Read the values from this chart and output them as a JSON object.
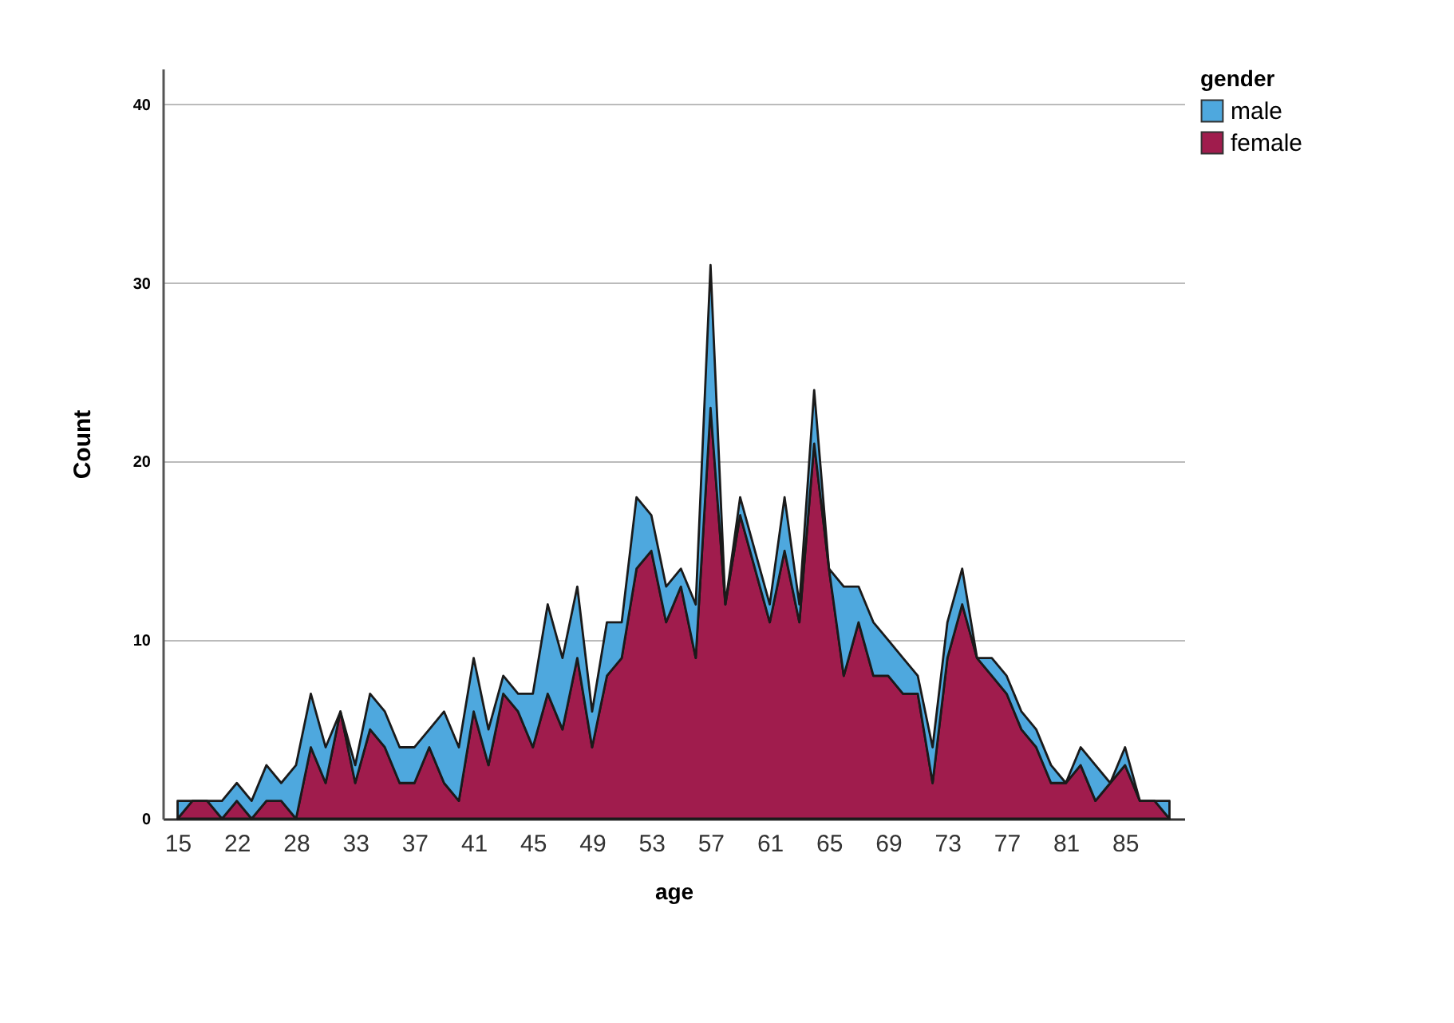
{
  "chart_data": {
    "type": "area",
    "stacked": true,
    "xlabel": "age",
    "ylabel": "Count",
    "legend_title": "gender",
    "legend": "top right",
    "grid": "y",
    "categories": [
      "15",
      null,
      null,
      null,
      "22",
      null,
      null,
      null,
      "28",
      null,
      null,
      null,
      "33",
      null,
      null,
      null,
      "37",
      null,
      null,
      null,
      "41",
      null,
      null,
      null,
      "45",
      null,
      null,
      null,
      "49",
      null,
      null,
      null,
      "53",
      null,
      null,
      null,
      "57",
      null,
      null,
      null,
      "61",
      null,
      null,
      null,
      "65",
      null,
      null,
      null,
      "69",
      null,
      null,
      null,
      "73",
      null,
      null,
      null,
      "77",
      null,
      null,
      null,
      "81",
      null,
      null,
      null,
      "85",
      null,
      null,
      null
    ],
    "ylim": [
      0,
      42
    ],
    "yticks": [
      0,
      10,
      20,
      30,
      40
    ],
    "series": [
      {
        "name": "female",
        "color": "#a01c4d",
        "values": [
          0,
          1,
          1,
          0,
          1,
          0,
          1,
          1,
          0,
          4,
          2,
          6,
          2,
          5,
          4,
          2,
          2,
          4,
          2,
          1,
          6,
          3,
          7,
          6,
          4,
          7,
          5,
          9,
          4,
          8,
          9,
          14,
          15,
          11,
          13,
          9,
          23,
          12,
          17,
          14,
          11,
          15,
          11,
          21,
          14,
          8,
          11,
          8,
          8,
          7,
          7,
          2,
          9,
          12,
          9,
          8,
          7,
          5,
          4,
          2,
          2,
          3,
          1,
          2,
          3,
          1,
          1,
          0
        ]
      },
      {
        "name": "male",
        "color": "#4ea8de",
        "values": [
          1,
          0,
          0,
          1,
          1,
          1,
          2,
          1,
          3,
          3,
          2,
          0,
          1,
          2,
          2,
          2,
          2,
          1,
          4,
          3,
          3,
          2,
          1,
          1,
          3,
          5,
          4,
          4,
          2,
          3,
          2,
          4,
          2,
          2,
          1,
          3,
          8,
          0,
          1,
          1,
          1,
          3,
          1,
          3,
          0,
          5,
          2,
          3,
          2,
          2,
          1,
          2,
          2,
          2,
          0,
          1,
          1,
          1,
          1,
          1,
          0,
          1,
          2,
          0,
          1,
          0,
          0,
          1
        ]
      }
    ]
  }
}
